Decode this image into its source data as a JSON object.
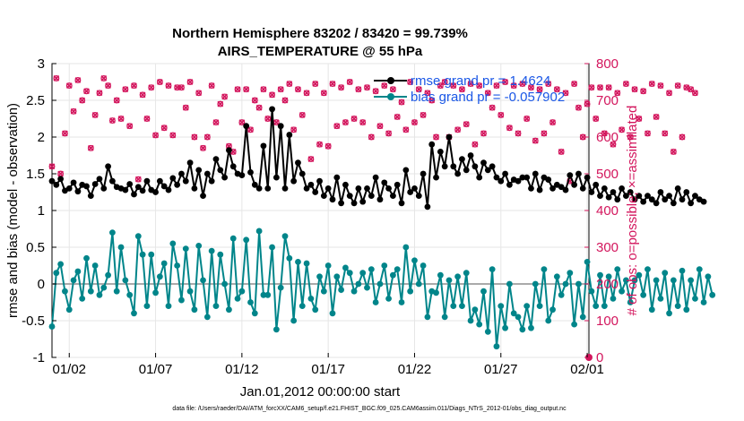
{
  "chart_data": {
    "type": "line",
    "title": "Northern Hemisphere 83202 / 83420 = 99.739%",
    "subtitle": "AIRS_TEMPERATURE @ 55 hPa",
    "xlabel": "Jan.01,2012 00:00:00 start",
    "ylabel": "rmse and bias (model - observation)",
    "y2label": "# of obs: o=possible; ×=assimilated",
    "xlim": [
      0.5,
      31.6
    ],
    "ylim": [
      -1,
      3
    ],
    "y2lim": [
      0,
      800
    ],
    "xticks": [
      {
        "value": 1.5,
        "label": "01/02"
      },
      {
        "value": 6.5,
        "label": "01/07"
      },
      {
        "value": 11.5,
        "label": "01/12"
      },
      {
        "value": 16.5,
        "label": "01/17"
      },
      {
        "value": 21.5,
        "label": "01/22"
      },
      {
        "value": 26.5,
        "label": "01/27"
      },
      {
        "value": 31.5,
        "label": "02/01"
      }
    ],
    "yticks": [
      "-1",
      "-0.5",
      "0",
      "0.5",
      "1",
      "1.5",
      "2",
      "2.5",
      "3"
    ],
    "y2ticks": [
      "0",
      "100",
      "200",
      "300",
      "400",
      "500",
      "600",
      "700",
      "800"
    ],
    "legend": {
      "position": "top-right",
      "entries": [
        "rmse grand pr = 1.4624",
        "bias grand pr = -0.057902"
      ]
    },
    "footnote": "data file: /Users/raeder/DAI/ATM_forcXX/CAM6_setup/f.e21.FHIST_BGC.f09_025.CAM6assim.011/Diags_NTrS_2012-01/obs_diag_output.nc",
    "colors": {
      "rmse": "#000000",
      "bias": "#00858a",
      "obs": "#d3165d",
      "zero": "#aaaaaa",
      "legend_text": "#1a57e6"
    },
    "series": [
      {
        "name": "rmse grand pr = 1.4624",
        "x0": 0.5,
        "dx": 0.25,
        "values": [
          1.4,
          1.35,
          1.43,
          1.27,
          1.3,
          1.38,
          1.26,
          1.35,
          1.33,
          1.2,
          1.36,
          1.43,
          1.3,
          1.6,
          1.4,
          1.32,
          1.3,
          1.28,
          1.36,
          1.22,
          1.32,
          1.27,
          1.4,
          1.28,
          1.25,
          1.4,
          1.33,
          1.28,
          1.44,
          1.35,
          1.5,
          1.4,
          1.65,
          1.3,
          1.55,
          1.2,
          1.5,
          1.4,
          1.7,
          1.55,
          1.45,
          1.82,
          1.6,
          1.5,
          1.48,
          2.15,
          1.52,
          1.35,
          1.3,
          1.88,
          1.3,
          2.38,
          1.45,
          2.15,
          1.3,
          2.03,
          1.4,
          1.65,
          1.5,
          1.3,
          1.35,
          1.25,
          1.4,
          1.2,
          1.3,
          1.15,
          1.45,
          1.1,
          1.35,
          1.2,
          1.1,
          1.3,
          1.12,
          1.3,
          1.2,
          1.45,
          1.15,
          1.38,
          1.3,
          1.2,
          1.35,
          1.1,
          1.55,
          1.25,
          1.3,
          1.2,
          1.5,
          1.05,
          1.9,
          1.45,
          1.8,
          1.6,
          2.0,
          1.6,
          1.5,
          1.7,
          1.55,
          1.75,
          1.6,
          1.45,
          1.65,
          1.55,
          1.6,
          1.45,
          1.4,
          1.5,
          1.35,
          1.42,
          1.4,
          1.45,
          1.45,
          1.3,
          1.5,
          1.28,
          1.45,
          1.42,
          1.3,
          1.35,
          1.32,
          1.28,
          1.48,
          1.35,
          1.5,
          1.3,
          1.45,
          1.25,
          1.35,
          1.2,
          1.3,
          1.18,
          1.25,
          1.15,
          1.3,
          1.2,
          1.25,
          1.15,
          1.2,
          1.12,
          1.2,
          1.15,
          1.1,
          1.25,
          1.15,
          1.2,
          1.1,
          1.3,
          1.15,
          1.25,
          1.1,
          1.2,
          1.15,
          1.12
        ]
      },
      {
        "name": "bias grand pr = -0.057902",
        "x0": 0.5,
        "dx": 0.25,
        "values": [
          -0.58,
          0.15,
          0.27,
          -0.1,
          -0.35,
          0.05,
          0.17,
          -0.2,
          0.35,
          -0.1,
          0.25,
          -0.15,
          -0.05,
          0.12,
          0.7,
          -0.1,
          0.5,
          0.05,
          -0.15,
          -0.4,
          0.65,
          0.4,
          -0.3,
          0.4,
          -0.12,
          0.1,
          0.28,
          -0.3,
          0.55,
          0.25,
          -0.22,
          0.48,
          -0.1,
          -0.35,
          0.52,
          0.05,
          -0.45,
          0.45,
          -0.3,
          0.4,
          0.0,
          -0.35,
          0.62,
          -0.2,
          -0.1,
          0.6,
          -0.25,
          -0.4,
          0.72,
          -0.15,
          -0.15,
          0.5,
          -0.62,
          -0.05,
          0.65,
          0.35,
          -0.5,
          0.3,
          -0.3,
          0.28,
          -0.2,
          -0.35,
          0.1,
          -0.1,
          0.25,
          -0.4,
          0.1,
          -0.08,
          0.22,
          0.15,
          -0.1,
          0.0,
          0.15,
          -0.05,
          0.2,
          -0.25,
          0.0,
          0.25,
          -0.2,
          0.12,
          0.2,
          -0.25,
          0.5,
          -0.1,
          0.32,
          0.0,
          0.25,
          -0.45,
          -0.1,
          -0.12,
          0.12,
          -0.45,
          0.05,
          -0.3,
          0.1,
          -0.3,
          0.15,
          -0.5,
          -0.35,
          -0.55,
          -0.1,
          -0.65,
          0.2,
          -0.85,
          -0.3,
          -0.6,
          0.0,
          -0.4,
          -0.45,
          -0.62,
          -0.3,
          -0.6,
          0.0,
          -0.3,
          0.2,
          -0.5,
          -0.35,
          0.1,
          -0.15,
          0.0,
          0.15,
          -0.55,
          0.0,
          -0.45,
          0.3,
          -0.1,
          -0.3,
          0.12,
          -0.3,
          0.1,
          -0.2,
          0.2,
          -0.1,
          0.05,
          -0.25,
          0.05,
          0.12,
          -0.15,
          0.2,
          -0.35,
          0.05,
          -0.2,
          0.15,
          -0.4,
          0.05,
          -0.3,
          0.18,
          -0.35,
          0.05,
          -0.2,
          0.2,
          -0.25,
          0.1,
          -0.15
        ]
      },
      {
        "name": "obs possible/assimilated (right axis)",
        "x0": 0.5,
        "dx": 0.25,
        "values": [
          520,
          760,
          500,
          610,
          740,
          670,
          755,
          700,
          725,
          570,
          660,
          720,
          760,
          740,
          645,
          700,
          650,
          730,
          630,
          740,
          485,
          715,
          650,
          735,
          605,
          750,
          625,
          740,
          605,
          735,
          735,
          680,
          750,
          600,
          720,
          570,
          600,
          740,
          640,
          690,
          710,
          575,
          560,
          730,
          640,
          730,
          620,
          700,
          680,
          730,
          650,
          715,
          640,
          730,
          700,
          745,
          620,
          730,
          660,
          720,
          540,
          745,
          580,
          720,
          575,
          745,
          630,
          735,
          640,
          750,
          650,
          730,
          640,
          735,
          600,
          725,
          630,
          740,
          610,
          730,
          655,
          695,
          620,
          750,
          640,
          730,
          660,
          720,
          700,
          600,
          740,
          750,
          600,
          740,
          620,
          730,
          635,
          745,
          580,
          740,
          610,
          720,
          680,
          740,
          660,
          750,
          625,
          740,
          610,
          745,
          650,
          735,
          590,
          730,
          610,
          745,
          640,
          730,
          560,
          720,
          480,
          745,
          680,
          600,
          690,
          735,
          650,
          735,
          610,
          735,
          580,
          720,
          620,
          745,
          600,
          730,
          650,
          725,
          610,
          745,
          655,
          740,
          610,
          720,
          560,
          740,
          600,
          735,
          730,
          720
        ]
      }
    ]
  }
}
